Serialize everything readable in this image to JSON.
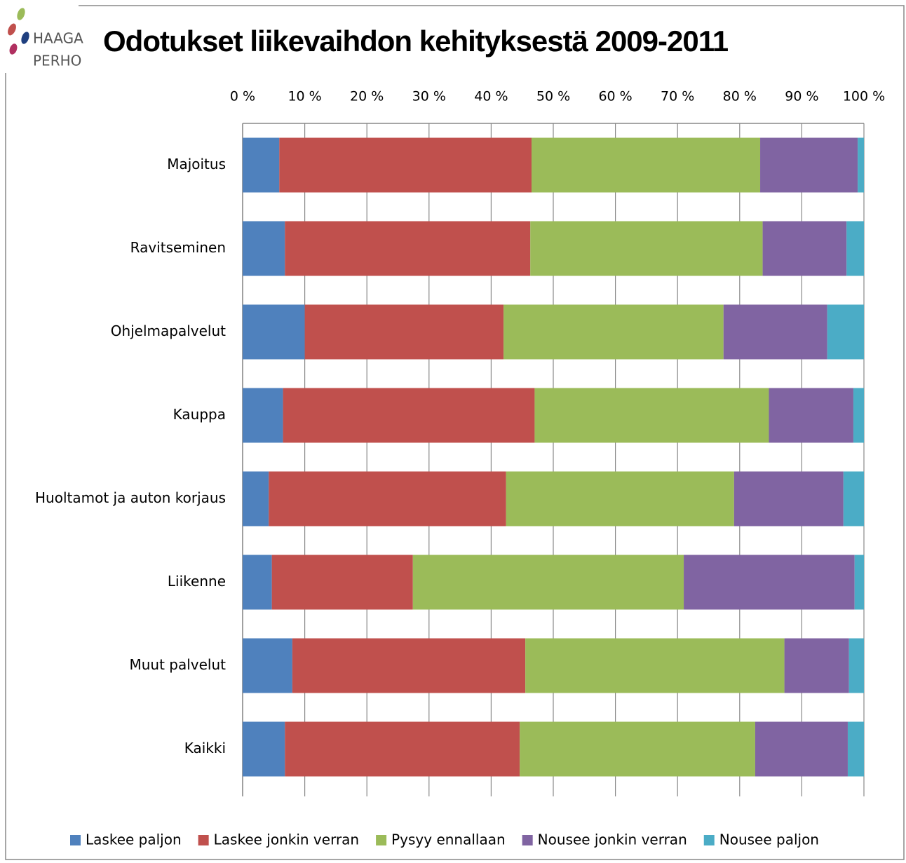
{
  "logo": {
    "line1": "HAAGA",
    "line2": "PERHO"
  },
  "chart_data": {
    "type": "stacked_bar_horizontal",
    "title": "Odotukset liikevaihdon kehityksestä 2009-2011",
    "categories": [
      "Majoitus",
      "Ravitseminen",
      "Ohjelmapalvelut",
      "Kauppa",
      "Huoltamot ja auton korjaus",
      "Liikenne",
      "Muut palvelut",
      "Kaikki"
    ],
    "series": [
      {
        "name": "Laskee paljon",
        "color": "#4f81bd",
        "values": [
          5.9,
          6.8,
          10.0,
          6.5,
          4.2,
          4.7,
          8.0,
          6.8
        ]
      },
      {
        "name": "Laskee jonkin verran",
        "color": "#c0504d",
        "values": [
          40.6,
          39.5,
          32.0,
          40.5,
          38.2,
          22.7,
          37.5,
          37.8
        ]
      },
      {
        "name": "Pysyy ennallaan",
        "color": "#9bbb59",
        "values": [
          36.8,
          37.4,
          35.4,
          37.7,
          36.7,
          43.6,
          41.7,
          37.9
        ]
      },
      {
        "name": "Nousee jonkin verran",
        "color": "#8064a2",
        "values": [
          15.7,
          13.5,
          16.7,
          13.6,
          17.6,
          27.5,
          10.4,
          14.9
        ]
      },
      {
        "name": "Nousee paljon",
        "color": "#4bacc6",
        "values": [
          1.0,
          2.8,
          5.9,
          1.7,
          3.3,
          1.5,
          2.4,
          2.6
        ]
      }
    ],
    "xlim": [
      0,
      100
    ],
    "xticks": [
      {
        "value": 0,
        "label": "0 %"
      },
      {
        "value": 10,
        "label": "10 %"
      },
      {
        "value": 20,
        "label": "20 %"
      },
      {
        "value": 30,
        "label": "30 %"
      },
      {
        "value": 40,
        "label": "40 %"
      },
      {
        "value": 50,
        "label": "50 %"
      },
      {
        "value": 60,
        "label": "60 %"
      },
      {
        "value": 70,
        "label": "70 %"
      },
      {
        "value": 80,
        "label": "80 %"
      },
      {
        "value": 90,
        "label": "90 %"
      },
      {
        "value": 100,
        "label": "100 %"
      }
    ],
    "grid": true,
    "legend": "bottom"
  }
}
